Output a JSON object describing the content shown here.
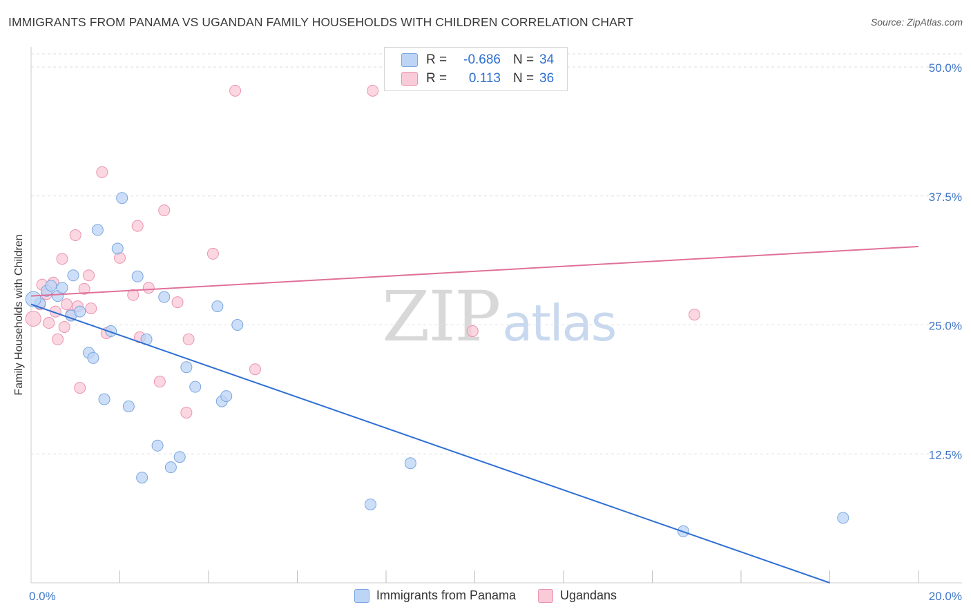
{
  "title": "IMMIGRANTS FROM PANAMA VS UGANDAN FAMILY HOUSEHOLDS WITH CHILDREN CORRELATION CHART",
  "source": "Source: ZipAtlas.com",
  "watermark": {
    "zip": "ZIP",
    "atlas": "atlas"
  },
  "legend_top": {
    "rows": [
      {
        "r_label": "R =",
        "r_value": "-0.686",
        "n_label": "N =",
        "n_value": "34"
      },
      {
        "r_label": "R =",
        "r_value": "0.113",
        "n_label": "N =",
        "n_value": "36"
      }
    ]
  },
  "legend_bottom": {
    "items": [
      "Immigrants from Panama",
      "Ugandans"
    ]
  },
  "colors": {
    "blue_fill": "#bcd4f5",
    "blue_stroke": "#7ba6e0",
    "blue_line": "#2e6fd3",
    "pink_fill": "#f9cad8",
    "pink_stroke": "#eb93b0",
    "pink_line": "#e0709a",
    "tick_text": "#3d74c9",
    "grid": "#dddddd"
  },
  "chart_data": {
    "type": "scatter",
    "title": "IMMIGRANTS FROM PANAMA VS UGANDAN FAMILY HOUSEHOLDS WITH CHILDREN CORRELATION CHART",
    "xlabel": "",
    "ylabel": "Family Households with Children",
    "xlim": [
      0,
      20
    ],
    "ylim": [
      0,
      50
    ],
    "x_tick_labels": [
      {
        "value": 0,
        "label": "0.0%"
      },
      {
        "value": 20,
        "label": "20.0%"
      }
    ],
    "x_minor_ticks": [
      2,
      4,
      6,
      8,
      10,
      12,
      14,
      16,
      18,
      20
    ],
    "y_ticks": [
      {
        "value": 12.5,
        "label": "12.5%"
      },
      {
        "value": 25,
        "label": "25.0%"
      },
      {
        "value": 37.5,
        "label": "37.5%"
      },
      {
        "value": 50,
        "label": "50.0%"
      }
    ],
    "series": [
      {
        "name": "Immigrants from Panama",
        "color": "blue",
        "r": -0.686,
        "n": 34,
        "trend": {
          "x0": 0,
          "y0": 27.0,
          "x1": 18.0,
          "y1": 0.0
        },
        "points": [
          [
            0.2,
            27.1
          ],
          [
            0.35,
            28.3
          ],
          [
            0.45,
            28.8
          ],
          [
            0.6,
            27.8
          ],
          [
            0.7,
            28.6
          ],
          [
            0.9,
            25.9
          ],
          [
            0.95,
            29.8
          ],
          [
            1.1,
            26.3
          ],
          [
            1.3,
            22.3
          ],
          [
            1.4,
            21.8
          ],
          [
            1.5,
            34.2
          ],
          [
            1.65,
            17.8
          ],
          [
            1.8,
            24.4
          ],
          [
            1.95,
            32.4
          ],
          [
            2.05,
            37.3
          ],
          [
            2.2,
            17.1
          ],
          [
            2.4,
            29.7
          ],
          [
            2.5,
            10.2
          ],
          [
            2.6,
            23.6
          ],
          [
            2.85,
            13.3
          ],
          [
            3.0,
            27.7
          ],
          [
            3.15,
            11.2
          ],
          [
            3.35,
            12.2
          ],
          [
            3.5,
            20.9
          ],
          [
            3.7,
            19.0
          ],
          [
            4.2,
            26.8
          ],
          [
            4.3,
            17.6
          ],
          [
            4.4,
            18.1
          ],
          [
            4.65,
            25.0
          ],
          [
            7.65,
            7.6
          ],
          [
            8.55,
            11.6
          ],
          [
            14.7,
            5.0
          ],
          [
            18.3,
            6.3
          ],
          [
            0.05,
            27.5
          ]
        ]
      },
      {
        "name": "Ugandans",
        "color": "pink",
        "r": 0.113,
        "n": 36,
        "trend": {
          "x0": 0,
          "y0": 27.8,
          "x1": 20.0,
          "y1": 32.6
        },
        "points": [
          [
            0.05,
            25.6
          ],
          [
            0.25,
            28.9
          ],
          [
            0.35,
            28.0
          ],
          [
            0.4,
            25.2
          ],
          [
            0.5,
            29.1
          ],
          [
            0.55,
            26.3
          ],
          [
            0.6,
            23.6
          ],
          [
            0.7,
            31.4
          ],
          [
            0.75,
            24.8
          ],
          [
            0.8,
            27.0
          ],
          [
            0.9,
            26.0
          ],
          [
            1.0,
            33.7
          ],
          [
            1.05,
            26.8
          ],
          [
            1.1,
            18.9
          ],
          [
            1.2,
            28.5
          ],
          [
            1.3,
            29.8
          ],
          [
            1.35,
            26.6
          ],
          [
            1.6,
            39.8
          ],
          [
            1.7,
            24.2
          ],
          [
            2.0,
            31.5
          ],
          [
            2.3,
            27.9
          ],
          [
            2.4,
            34.6
          ],
          [
            2.45,
            23.8
          ],
          [
            2.65,
            28.6
          ],
          [
            2.9,
            19.5
          ],
          [
            3.0,
            36.1
          ],
          [
            3.3,
            27.2
          ],
          [
            3.5,
            16.5
          ],
          [
            3.55,
            23.6
          ],
          [
            4.1,
            31.9
          ],
          [
            4.6,
            47.7
          ],
          [
            5.05,
            20.7
          ],
          [
            7.7,
            47.7
          ],
          [
            9.95,
            24.4
          ],
          [
            14.95,
            26.0
          ],
          [
            0.2,
            27.0
          ]
        ]
      }
    ]
  }
}
